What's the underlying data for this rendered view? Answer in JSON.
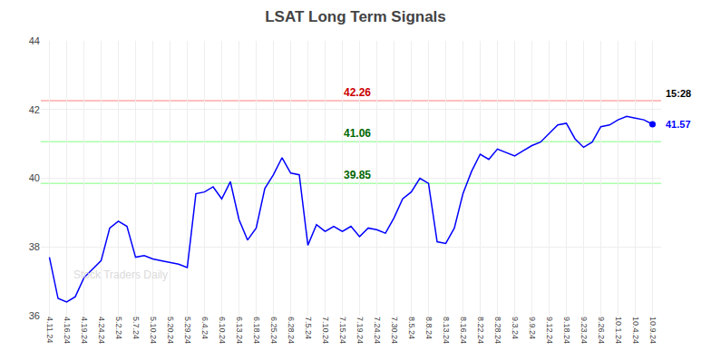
{
  "chart_data": {
    "type": "line",
    "title": "LSAT Long Term Signals",
    "categories": [
      "4.11.24",
      null,
      "4.16.24",
      null,
      "4.19.24",
      null,
      "4.24.24",
      null,
      "5.2.24",
      null,
      "5.7.24",
      null,
      "5.10.24",
      null,
      "5.20.24",
      null,
      "5.29.24",
      null,
      "6.4.24",
      null,
      "6.10.24",
      null,
      "6.13.24",
      null,
      "6.18.24",
      null,
      "6.25.24",
      null,
      "6.28.24",
      null,
      "7.5.24",
      null,
      "7.10.24",
      null,
      "7.15.24",
      null,
      "7.19.24",
      null,
      "7.24.24",
      null,
      "7.30.24",
      null,
      "8.5.24",
      null,
      "8.8.24",
      null,
      "8.13.24",
      null,
      "8.16.24",
      null,
      "8.22.24",
      null,
      "8.28.24",
      null,
      "9.3.24",
      null,
      "9.9.24",
      null,
      "9.12.24",
      null,
      "9.18.24",
      null,
      "9.23.24",
      null,
      "9.26.24",
      null,
      "10.1.24",
      null,
      "10.4.24",
      null,
      "10.9.24"
    ],
    "values": [
      37.7,
      36.5,
      36.4,
      36.55,
      37.1,
      37.35,
      37.6,
      38.55,
      38.75,
      38.6,
      37.7,
      37.75,
      37.65,
      37.6,
      37.55,
      37.5,
      37.4,
      39.55,
      39.6,
      39.75,
      39.4,
      39.9,
      38.8,
      38.2,
      38.55,
      39.7,
      40.1,
      40.6,
      40.15,
      40.1,
      38.05,
      38.65,
      38.45,
      38.6,
      38.45,
      38.6,
      38.3,
      38.55,
      38.5,
      38.4,
      38.85,
      39.4,
      39.6,
      40.0,
      39.85,
      38.15,
      38.1,
      38.55,
      39.55,
      40.2,
      40.7,
      40.55,
      40.85,
      40.75,
      40.65,
      40.8,
      40.95,
      41.05,
      41.3,
      41.55,
      41.6,
      41.15,
      40.9,
      41.05,
      41.5,
      41.55,
      41.7,
      41.8,
      41.75,
      41.7,
      41.57
    ],
    "color": "blue",
    "ylim": [
      36,
      44
    ],
    "yticks": [
      36,
      38,
      40,
      42,
      44
    ],
    "grid": true,
    "hlines": [
      {
        "value": 42.26,
        "label": "42.26",
        "color": "#ffaaaa",
        "label_color": "#cc0000"
      },
      {
        "value": 41.06,
        "label": "41.06",
        "color": "#aaffaa",
        "label_color": "#006600"
      },
      {
        "value": 39.85,
        "label": "39.85",
        "color": "#aaffaa",
        "label_color": "#006600"
      }
    ],
    "last_time": "15:28",
    "last_price": 41.57,
    "watermark": "Stock Traders Daily"
  }
}
